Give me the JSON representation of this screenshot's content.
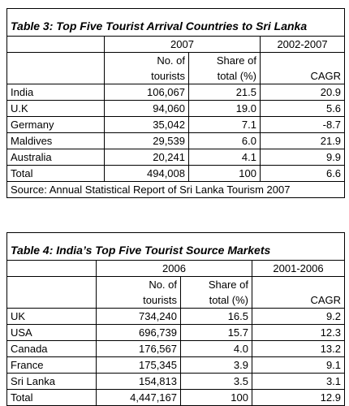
{
  "tables": [
    {
      "title": "Table 3: Top Five Tourist Arrival Countries to Sri Lanka",
      "periods": [
        "2007",
        "2002-2007"
      ],
      "columns": [
        [
          "No. of",
          "tourists"
        ],
        [
          "Share of",
          "total (%)"
        ],
        [
          "CAGR"
        ]
      ],
      "rows": [
        [
          "India",
          "106,067",
          "21.5",
          "20.9"
        ],
        [
          "U.K",
          "94,060",
          "19.0",
          "5.6"
        ],
        [
          "Germany",
          "35,042",
          "7.1",
          "-8.7"
        ],
        [
          "Maldives",
          "29,539",
          "6.0",
          "21.9"
        ],
        [
          "Australia",
          "20,241",
          "4.1",
          "9.9"
        ],
        [
          "Total",
          "494,008",
          "100",
          "6.6"
        ]
      ],
      "source": "Source: Annual Statistical Report of Sri Lanka Tourism 2007"
    },
    {
      "title": "Table 4: India’s Top Five Tourist Source Markets",
      "periods": [
        "2006",
        "2001-2006"
      ],
      "columns": [
        [
          "No. of",
          "tourists"
        ],
        [
          "Share of",
          "total (%)"
        ],
        [
          "CAGR"
        ]
      ],
      "rows": [
        [
          "UK",
          "734,240",
          "16.5",
          "9.2"
        ],
        [
          "USA",
          "696,739",
          "15.7",
          "12.3"
        ],
        [
          "Canada",
          "176,567",
          "4.0",
          "13.2"
        ],
        [
          "France",
          "175,345",
          "3.9",
          "9.1"
        ],
        [
          "Sri Lanka",
          "154,813",
          "3.5",
          "3.1"
        ],
        [
          "Total",
          "4,447,167",
          "100",
          "12.9"
        ]
      ]
    }
  ]
}
